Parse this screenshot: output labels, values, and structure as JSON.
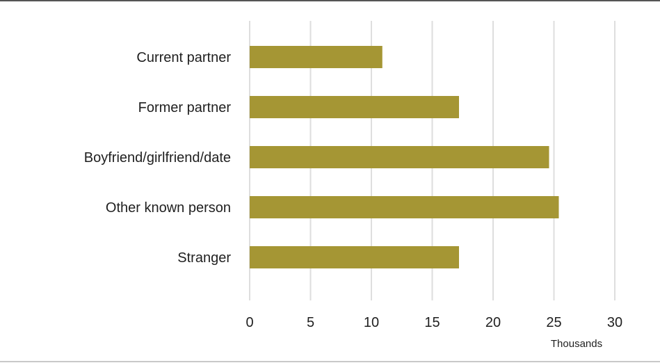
{
  "chart_data": {
    "type": "bar",
    "orientation": "horizontal",
    "categories": [
      "Current partner",
      "Former partner",
      "Boyfriend/girlfriend/date",
      "Other known person",
      "Stranger"
    ],
    "values": [
      10.9,
      17.2,
      24.6,
      25.4,
      17.2
    ],
    "xlim": [
      0,
      30
    ],
    "xticks": [
      "0",
      "5",
      "10",
      "15",
      "20",
      "25",
      "30"
    ],
    "x_unit_label": "Thousands",
    "grid": "vertical",
    "bar_color": "#a59634",
    "gridline_color": "#dedede"
  }
}
